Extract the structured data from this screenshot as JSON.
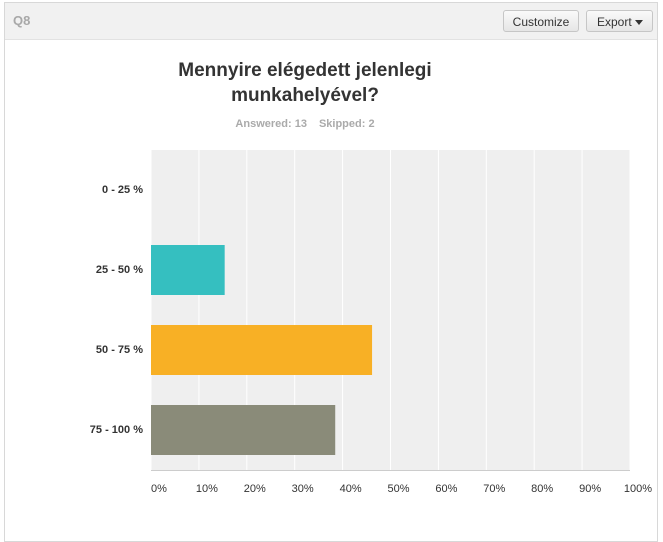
{
  "header": {
    "question": "Q8",
    "buttons": [
      "Customize",
      "Export"
    ]
  },
  "chart_data": {
    "type": "hbar",
    "title": "Mennyire elégedett jelenlegi munkahelyével?",
    "answered": "Answered: 13",
    "skipped": "Skipped: 2",
    "categories": [
      "0 - 25 %",
      "25 - 50 %",
      "50 - 75 %",
      "75 - 100 %"
    ],
    "values": [
      0,
      15.38,
      46.15,
      38.46
    ],
    "colors": [
      "#d9534f",
      "#35bfc0",
      "#f8b025",
      "#8a8b79"
    ],
    "xlim": [
      0,
      100
    ],
    "xticks": [
      {
        "value": 0,
        "label": "0%"
      },
      {
        "value": 10,
        "label": "10%"
      },
      {
        "value": 20,
        "label": "20%"
      },
      {
        "value": 30,
        "label": "30%"
      },
      {
        "value": 40,
        "label": "40%"
      },
      {
        "value": 50,
        "label": "50%"
      },
      {
        "value": 60,
        "label": "60%"
      },
      {
        "value": 70,
        "label": "70%"
      },
      {
        "value": 80,
        "label": "80%"
      },
      {
        "value": 90,
        "label": "90%"
      },
      {
        "value": 100,
        "label": "100%"
      }
    ],
    "grid": true
  }
}
